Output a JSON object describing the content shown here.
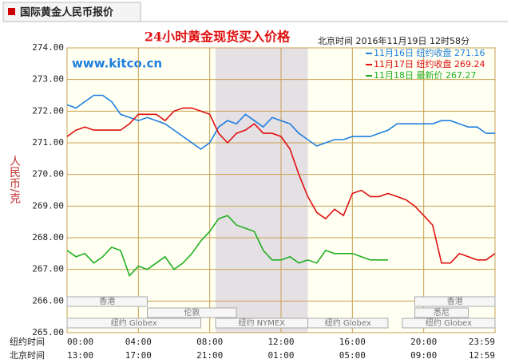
{
  "header": {
    "tab": "国际黄金人民币报价"
  },
  "chart_data": {
    "type": "line",
    "title": "24小时黄金现货买入价格",
    "subtitle": "北京时间  2016年11月19日 12时58分",
    "watermark": "www.kitco.cn",
    "ylabel": "人民币/克",
    "x": [
      0,
      0.5,
      1,
      1.5,
      2,
      2.5,
      3,
      3.5,
      4,
      4.5,
      5,
      5.5,
      6,
      6.5,
      7,
      7.5,
      8,
      8.5,
      9,
      9.5,
      10,
      10.5,
      11,
      11.5,
      12,
      12.5,
      13,
      13.5,
      14,
      14.5,
      15,
      15.5,
      16,
      16.5,
      17,
      17.5,
      18,
      18.5,
      19,
      19.5,
      20,
      20.5,
      21,
      21.5,
      22,
      22.5,
      23,
      23.5,
      24
    ],
    "series": [
      {
        "name": "11月16日 纽约收盘 271.16",
        "color": "#1f7fe0",
        "values": [
          272.2,
          272.1,
          272.3,
          272.5,
          272.5,
          272.3,
          271.9,
          271.8,
          271.7,
          271.8,
          271.7,
          271.6,
          271.4,
          271.2,
          271.0,
          270.8,
          271.0,
          271.5,
          271.7,
          271.6,
          271.9,
          271.7,
          271.5,
          271.8,
          271.7,
          271.6,
          271.3,
          271.1,
          270.9,
          271.0,
          271.1,
          271.1,
          271.2,
          271.2,
          271.2,
          271.3,
          271.4,
          271.6,
          271.6,
          271.6,
          271.6,
          271.6,
          271.7,
          271.7,
          271.6,
          271.5,
          271.5,
          271.3,
          271.3
        ]
      },
      {
        "name": "11月17日 纽约收盘 269.24",
        "color": "#e01010",
        "values": [
          271.2,
          271.4,
          271.5,
          271.4,
          271.4,
          271.4,
          271.4,
          271.6,
          271.9,
          271.9,
          271.9,
          271.7,
          272.0,
          272.1,
          272.1,
          272.0,
          271.9,
          271.3,
          271.0,
          271.3,
          271.4,
          271.6,
          271.3,
          271.3,
          271.2,
          270.8,
          270.0,
          269.3,
          268.8,
          268.6,
          268.9,
          268.7,
          269.4,
          269.5,
          269.3,
          269.3,
          269.4,
          269.3,
          269.2,
          269.0,
          268.7,
          268.4,
          267.2,
          267.2,
          267.5,
          267.4,
          267.3,
          267.3,
          267.5
        ]
      },
      {
        "name": "11月18日 最新价 267.27",
        "color": "#22b022",
        "values": [
          267.6,
          267.4,
          267.5,
          267.2,
          267.4,
          267.7,
          267.6,
          266.8,
          267.1,
          267.0,
          267.2,
          267.4,
          267.0,
          267.2,
          267.5,
          267.9,
          268.2,
          268.6,
          268.7,
          268.4,
          268.3,
          268.2,
          267.6,
          267.3,
          267.3,
          267.4,
          267.2,
          267.3,
          267.2,
          267.6,
          267.5,
          267.5,
          267.5,
          267.4,
          267.3,
          267.3,
          267.3,
          null,
          null,
          null,
          null,
          null,
          null,
          null,
          null,
          null,
          null,
          null,
          null
        ]
      }
    ],
    "xlim": [
      0,
      24
    ],
    "xticks": [
      {
        "value": 0,
        "label": "00:00"
      },
      {
        "value": 4,
        "label": "04:00"
      },
      {
        "value": 8,
        "label": "08:00"
      },
      {
        "value": 12,
        "label": "12:00"
      },
      {
        "value": 16,
        "label": "16:00"
      },
      {
        "value": 20,
        "label": "20:00"
      },
      {
        "value": 24,
        "label": "23:59"
      }
    ],
    "xrow_ny": "纽约时间",
    "xrow_bj": "北京时间",
    "xticks_beijing": [
      "13:00",
      "17:00",
      "21:00",
      "01:00",
      "05:00",
      "09:00",
      "12:59"
    ],
    "ylim": [
      265,
      274
    ],
    "yticks": [
      {
        "value": 265,
        "label": "265.00"
      },
      {
        "value": 266,
        "label": "266.00"
      },
      {
        "value": 267,
        "label": "267.00"
      },
      {
        "value": 268,
        "label": "268.00"
      },
      {
        "value": 269,
        "label": "269.00"
      },
      {
        "value": 270,
        "label": "270.00"
      },
      {
        "value": 271,
        "label": "271.00"
      },
      {
        "value": 272,
        "label": "272.00"
      },
      {
        "value": 273,
        "label": "273.00"
      },
      {
        "value": 274,
        "label": "274.00"
      }
    ],
    "grid": true,
    "shaded": [
      8.33,
      13.5
    ],
    "sessions": [
      "香港",
      "伦敦",
      "纽约 Globex",
      "纽约 NYMEX",
      "纽约 Globex",
      "悉尼",
      "香港",
      "纽约 Globex"
    ]
  }
}
